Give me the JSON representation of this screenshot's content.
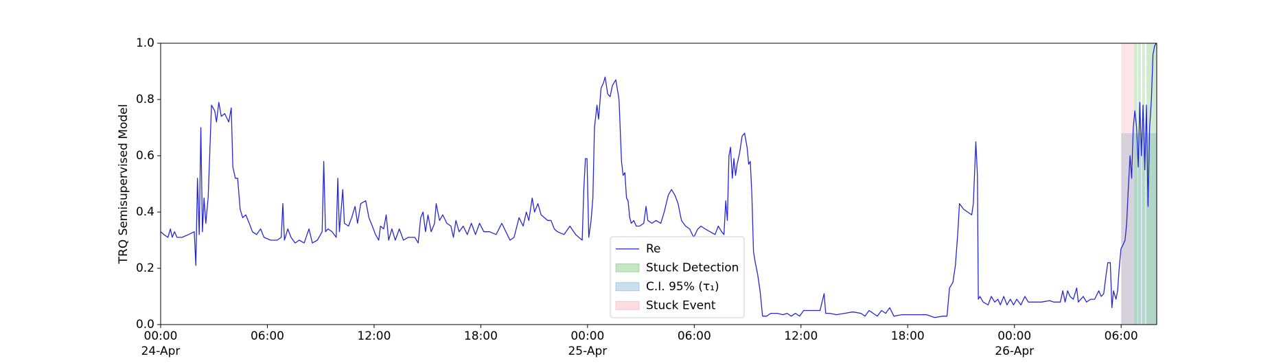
{
  "chart_data": {
    "type": "line",
    "ylabel": "TRQ Semisupervised Model",
    "xlim": [
      0,
      56
    ],
    "ylim": [
      0,
      1
    ],
    "xticks": [
      {
        "value": 0,
        "label": "00:00"
      },
      {
        "value": 6,
        "label": "06:00"
      },
      {
        "value": 12,
        "label": "12:00"
      },
      {
        "value": 18,
        "label": "18:00"
      },
      {
        "value": 24,
        "label": "00:00"
      },
      {
        "value": 30,
        "label": "06:00"
      },
      {
        "value": 36,
        "label": "12:00"
      },
      {
        "value": 42,
        "label": "18:00"
      },
      {
        "value": 48,
        "label": "00:00"
      },
      {
        "value": 54,
        "label": "06:00"
      }
    ],
    "xtick_dates": [
      {
        "value": 0,
        "label": "24-Apr"
      },
      {
        "value": 24,
        "label": "25-Apr"
      },
      {
        "value": 48,
        "label": "26-Apr"
      }
    ],
    "yticks": [
      {
        "value": 0,
        "label": "0.0"
      },
      0.2,
      0.4,
      0.6,
      0.8,
      {
        "value": 1,
        "label": "1.0"
      }
    ],
    "grid": false,
    "legend": "lower center",
    "x": [
      0,
      0.18,
      0.41,
      0.55,
      0.65,
      0.78,
      0.92,
      1.2,
      1.57,
      1.89,
      1.98,
      2.07,
      2.17,
      2.26,
      2.35,
      2.44,
      2.54,
      2.67,
      2.86,
      3.04,
      3.14,
      3.27,
      3.41,
      3.6,
      3.83,
      3.97,
      4.06,
      4.2,
      4.33,
      4.47,
      4.61,
      4.79,
      4.98,
      5.16,
      5.39,
      5.62,
      5.81,
      6.18,
      6.55,
      6.78,
      6.87,
      6.96,
      7.15,
      7.33,
      7.56,
      7.79,
      8.07,
      8.34,
      8.53,
      8.81,
      9.08,
      9.17,
      9.27,
      9.41,
      9.64,
      9.87,
      9.96,
      10.05,
      10.24,
      10.33,
      10.56,
      10.74,
      10.93,
      11.07,
      11.25,
      11.53,
      11.71,
      11.9,
      12.08,
      12.26,
      12.36,
      12.54,
      12.68,
      12.82,
      13.0,
      13.19,
      13.42,
      13.65,
      13.92,
      14.29,
      14.48,
      14.62,
      14.75,
      14.89,
      15.03,
      15.21,
      15.4,
      15.49,
      15.68,
      15.86,
      16.09,
      16.32,
      16.46,
      16.6,
      16.78,
      17.01,
      17.24,
      17.47,
      17.7,
      17.93,
      18.17,
      18.49,
      18.86,
      19.18,
      19.41,
      19.64,
      19.87,
      20.15,
      20.38,
      20.56,
      20.7,
      20.89,
      21.02,
      21.21,
      21.39,
      21.58,
      21.76,
      21.95,
      22.13,
      22.31,
      22.68,
      23.01,
      23.33,
      23.51,
      23.7,
      23.79,
      23.88,
      23.97,
      24.07,
      24.2,
      24.3,
      24.39,
      24.53,
      24.62,
      24.76,
      24.9,
      24.99,
      25.13,
      25.27,
      25.4,
      25.59,
      25.77,
      25.91,
      26.0,
      26.1,
      26.19,
      26.28,
      26.37,
      26.46,
      26.6,
      26.74,
      26.93,
      27.16,
      27.29,
      27.39,
      27.62,
      27.85,
      28.12,
      28.31,
      28.54,
      28.72,
      28.91,
      29.09,
      29.28,
      29.51,
      29.74,
      29.97,
      30.2,
      30.38,
      30.61,
      30.89,
      31.17,
      31.35,
      31.54,
      31.67,
      31.77,
      31.86,
      31.95,
      32.04,
      32.14,
      32.23,
      32.32,
      32.41,
      32.55,
      32.69,
      32.83,
      32.97,
      33.06,
      33.15,
      33.24,
      33.33,
      33.43,
      33.56,
      33.7,
      33.84,
      34.07,
      34.3,
      34.67,
      34.99,
      35.22,
      35.45,
      35.69,
      35.92,
      36.15,
      36.61,
      37.07,
      37.3,
      37.39,
      37.62,
      37.99,
      38.45,
      38.91,
      39.37,
      39.6,
      39.83,
      40.06,
      40.29,
      40.53,
      40.76,
      40.99,
      41.22,
      41.68,
      42.37,
      43.06,
      43.52,
      43.98,
      44.21,
      44.35,
      44.54,
      44.68,
      44.81,
      44.91,
      45.14,
      45.37,
      45.6,
      45.69,
      45.83,
      45.92,
      45.97,
      46.06,
      46.24,
      46.52,
      46.7,
      46.89,
      47.07,
      47.21,
      47.4,
      47.58,
      47.77,
      47.95,
      48.13,
      48.36,
      48.59,
      48.78,
      49.06,
      49.52,
      49.98,
      50.21,
      50.44,
      50.58,
      50.72,
      50.85,
      50.99,
      51.13,
      51.31,
      51.5,
      51.59,
      51.73,
      51.87,
      52.05,
      52.28,
      52.51,
      52.74,
      52.88,
      53.02,
      53.16,
      53.25,
      53.39,
      53.48,
      53.57,
      53.71,
      53.8,
      53.89,
      53.99,
      54.08,
      54.22,
      54.31,
      54.4,
      54.5,
      54.59,
      54.68,
      54.77,
      54.87,
      54.96,
      55.05,
      55.14,
      55.23,
      55.33,
      55.42,
      55.51,
      55.6,
      55.7,
      55.79,
      55.88,
      55.97
    ],
    "series": [
      {
        "name": "Re",
        "color": "#2424d6",
        "values": [
          0.33,
          0.32,
          0.31,
          0.34,
          0.31,
          0.33,
          0.31,
          0.31,
          0.32,
          0.33,
          0.21,
          0.52,
          0.32,
          0.7,
          0.33,
          0.45,
          0.36,
          0.45,
          0.78,
          0.76,
          0.72,
          0.79,
          0.74,
          0.75,
          0.72,
          0.77,
          0.56,
          0.52,
          0.52,
          0.41,
          0.38,
          0.39,
          0.36,
          0.33,
          0.32,
          0.34,
          0.31,
          0.3,
          0.3,
          0.31,
          0.43,
          0.3,
          0.34,
          0.31,
          0.29,
          0.3,
          0.29,
          0.34,
          0.29,
          0.3,
          0.33,
          0.58,
          0.33,
          0.34,
          0.33,
          0.31,
          0.52,
          0.33,
          0.48,
          0.36,
          0.35,
          0.38,
          0.42,
          0.36,
          0.43,
          0.44,
          0.38,
          0.35,
          0.32,
          0.3,
          0.35,
          0.34,
          0.39,
          0.3,
          0.34,
          0.3,
          0.34,
          0.3,
          0.31,
          0.31,
          0.29,
          0.38,
          0.4,
          0.33,
          0.39,
          0.33,
          0.36,
          0.43,
          0.37,
          0.39,
          0.36,
          0.35,
          0.31,
          0.37,
          0.33,
          0.35,
          0.32,
          0.36,
          0.32,
          0.36,
          0.33,
          0.33,
          0.32,
          0.36,
          0.33,
          0.3,
          0.31,
          0.38,
          0.35,
          0.4,
          0.37,
          0.45,
          0.4,
          0.43,
          0.39,
          0.38,
          0.37,
          0.37,
          0.34,
          0.33,
          0.32,
          0.35,
          0.32,
          0.31,
          0.3,
          0.48,
          0.59,
          0.59,
          0.31,
          0.37,
          0.45,
          0.7,
          0.78,
          0.73,
          0.84,
          0.86,
          0.88,
          0.82,
          0.81,
          0.85,
          0.87,
          0.8,
          0.58,
          0.53,
          0.54,
          0.45,
          0.44,
          0.38,
          0.36,
          0.37,
          0.35,
          0.35,
          0.36,
          0.42,
          0.37,
          0.36,
          0.37,
          0.36,
          0.4,
          0.46,
          0.48,
          0.46,
          0.43,
          0.37,
          0.35,
          0.34,
          0.31,
          0.34,
          0.35,
          0.34,
          0.33,
          0.32,
          0.35,
          0.33,
          0.32,
          0.44,
          0.37,
          0.6,
          0.63,
          0.52,
          0.59,
          0.53,
          0.57,
          0.61,
          0.67,
          0.68,
          0.63,
          0.57,
          0.58,
          0.46,
          0.26,
          0.22,
          0.18,
          0.12,
          0.03,
          0.03,
          0.04,
          0.04,
          0.035,
          0.04,
          0.03,
          0.04,
          0.03,
          0.05,
          0.05,
          0.05,
          0.11,
          0.04,
          0.04,
          0.035,
          0.04,
          0.045,
          0.04,
          0.03,
          0.05,
          0.04,
          0.03,
          0.05,
          0.04,
          0.06,
          0.03,
          0.035,
          0.035,
          0.035,
          0.025,
          0.03,
          0.03,
          0.13,
          0.15,
          0.21,
          0.32,
          0.43,
          0.41,
          0.4,
          0.39,
          0.43,
          0.65,
          0.53,
          0.09,
          0.1,
          0.08,
          0.07,
          0.1,
          0.08,
          0.09,
          0.07,
          0.1,
          0.07,
          0.09,
          0.07,
          0.09,
          0.07,
          0.1,
          0.08,
          0.08,
          0.08,
          0.085,
          0.08,
          0.08,
          0.08,
          0.12,
          0.08,
          0.12,
          0.1,
          0.09,
          0.13,
          0.08,
          0.09,
          0.1,
          0.08,
          0.09,
          0.09,
          0.12,
          0.1,
          0.11,
          0.18,
          0.22,
          0.22,
          0.06,
          0.12,
          0.09,
          0.12,
          0.2,
          0.27,
          0.28,
          0.3,
          0.36,
          0.48,
          0.6,
          0.52,
          0.7,
          0.76,
          0.7,
          0.56,
          0.79,
          0.6,
          0.78,
          0.55,
          0.78,
          0.42,
          0.7,
          0.8,
          0.96,
          0.99,
          1.0
        ]
      }
    ],
    "regions": [
      {
        "name": "Stuck Detection",
        "color": "#2ca02c",
        "top": 1,
        "intervals": [
          [
            54.73,
            54.91
          ],
          [
            54.96,
            55.1
          ],
          [
            55.19,
            55.33
          ],
          [
            55.42,
            56
          ]
        ]
      },
      {
        "name": "C.I. 95% (τ₁)",
        "color": "#1f77b4",
        "top": 0.68,
        "intervals": [
          [
            54.0,
            56
          ]
        ]
      },
      {
        "name": "Stuck Event",
        "color": "#ff6b7a",
        "top": 1,
        "intervals": [
          [
            54.0,
            54.73
          ]
        ]
      }
    ]
  }
}
